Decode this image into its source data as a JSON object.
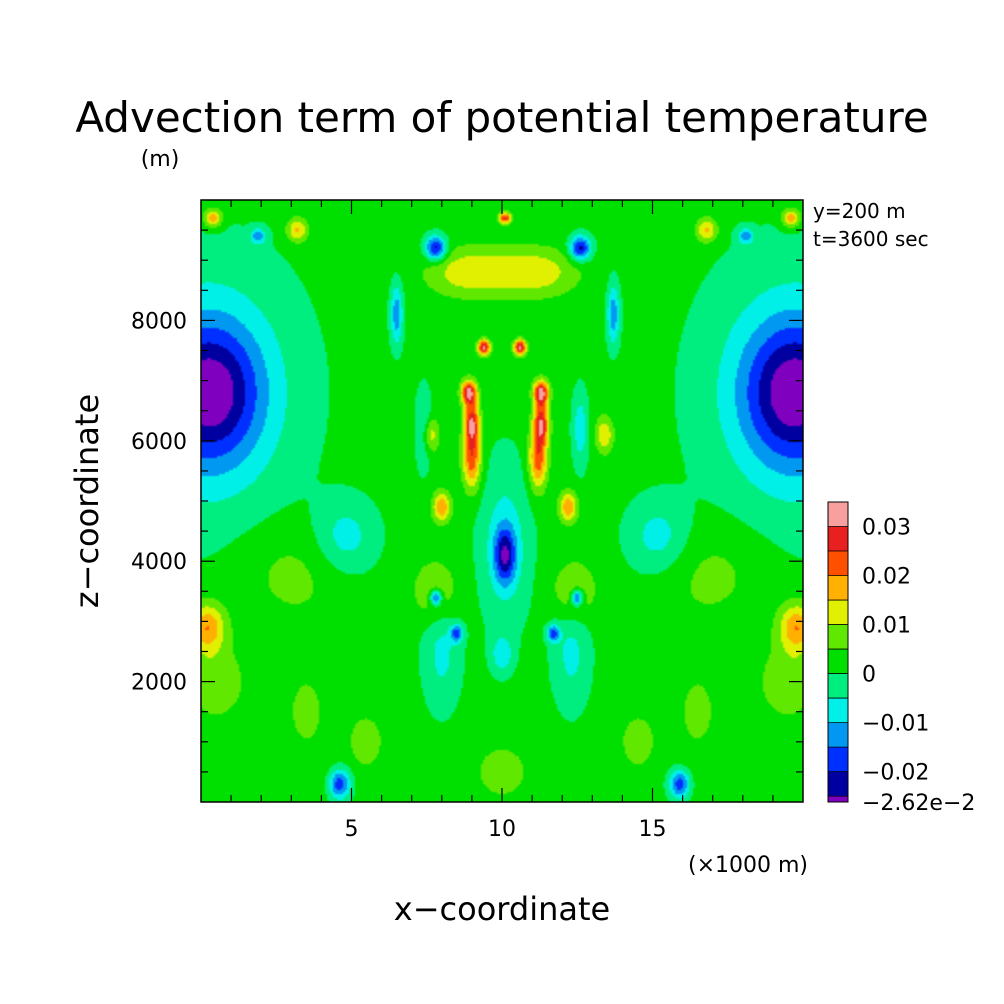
{
  "chart_data": {
    "type": "heatmap",
    "title": "Advection term of potential temperature",
    "units_note": "(m)",
    "annotation_lines": [
      "y=200 m",
      "t=3600 sec"
    ],
    "xlabel": "x−coordinate",
    "xunit": "(×1000 m)",
    "ylabel": "z−coordinate",
    "xlim": [
      0,
      20
    ],
    "ylim": [
      0,
      10000
    ],
    "x_ticks": [
      5,
      10,
      15
    ],
    "x_tick_labels": [
      "5",
      "10",
      "15"
    ],
    "y_ticks": [
      2000,
      4000,
      6000,
      8000
    ],
    "y_tick_labels": [
      "2000",
      "4000",
      "6000",
      "8000"
    ],
    "grid": false,
    "colorbar": {
      "min": -0.0262,
      "levels": [
        -0.025,
        -0.02,
        -0.015,
        -0.01,
        -0.005,
        0,
        0.005,
        0.01,
        0.015,
        0.02,
        0.025,
        0.03,
        0.035
      ],
      "colors": [
        "#7f00bf",
        "#0000a0",
        "#0030ff",
        "#0098f0",
        "#00f0e8",
        "#00ee80",
        "#00e000",
        "#60e800",
        "#e0f000",
        "#ffb000",
        "#ff5000",
        "#e82020",
        "#f8a0a0"
      ],
      "labels": [
        {
          "text": "0.03",
          "value": 0.03
        },
        {
          "text": "0.02",
          "value": 0.02
        },
        {
          "text": "0.01",
          "value": 0.01
        },
        {
          "text": "0",
          "value": 0
        },
        {
          "text": "−0.01",
          "value": -0.01
        },
        {
          "text": "−0.02",
          "value": -0.02
        },
        {
          "text": "−2.62e−2",
          "value": -0.0262
        }
      ]
    },
    "field_features": [
      {
        "x": 0.3,
        "z": 6800,
        "value": -0.02,
        "sx": 1.6,
        "sz": 1100
      },
      {
        "x": 19.7,
        "z": 6800,
        "value": -0.02,
        "sx": 1.6,
        "sz": 1100
      },
      {
        "x": 0.2,
        "z": 6800,
        "value": -0.012,
        "sx": 2.8,
        "sz": 2000
      },
      {
        "x": 19.8,
        "z": 6800,
        "value": -0.012,
        "sx": 2.8,
        "sz": 2000
      },
      {
        "x": 4.8,
        "z": 4400,
        "value": -0.009,
        "sx": 1.0,
        "sz": 600
      },
      {
        "x": 15.2,
        "z": 4400,
        "value": -0.009,
        "sx": 1.0,
        "sz": 600
      },
      {
        "x": 10.1,
        "z": 4100,
        "value": -0.02,
        "sx": 0.35,
        "sz": 450
      },
      {
        "x": 10.1,
        "z": 4300,
        "value": -0.009,
        "sx": 0.8,
        "sz": 1300
      },
      {
        "x": 9.0,
        "z": 5700,
        "value": 0.022,
        "sx": 0.3,
        "sz": 500
      },
      {
        "x": 11.2,
        "z": 5700,
        "value": 0.022,
        "sx": 0.3,
        "sz": 500
      },
      {
        "x": 9.0,
        "z": 6300,
        "value": 0.026,
        "sx": 0.25,
        "sz": 350
      },
      {
        "x": 11.3,
        "z": 6300,
        "value": 0.026,
        "sx": 0.25,
        "sz": 350
      },
      {
        "x": 8.9,
        "z": 6800,
        "value": 0.03,
        "sx": 0.25,
        "sz": 200
      },
      {
        "x": 11.3,
        "z": 6800,
        "value": 0.03,
        "sx": 0.25,
        "sz": 200
      },
      {
        "x": 9.4,
        "z": 7550,
        "value": 0.03,
        "sx": 0.2,
        "sz": 130
      },
      {
        "x": 10.6,
        "z": 7550,
        "value": 0.03,
        "sx": 0.2,
        "sz": 130
      },
      {
        "x": 8.0,
        "z": 4900,
        "value": 0.018,
        "sx": 0.3,
        "sz": 250
      },
      {
        "x": 12.2,
        "z": 4900,
        "value": 0.018,
        "sx": 0.3,
        "sz": 250
      },
      {
        "x": 7.6,
        "z": 6100,
        "value": 0.013,
        "sx": 0.3,
        "sz": 300
      },
      {
        "x": 13.4,
        "z": 6100,
        "value": 0.013,
        "sx": 0.3,
        "sz": 300
      },
      {
        "x": 7.8,
        "z": 3400,
        "value": -0.022,
        "sx": 0.2,
        "sz": 140
      },
      {
        "x": 12.5,
        "z": 3400,
        "value": -0.022,
        "sx": 0.2,
        "sz": 140
      },
      {
        "x": 8.5,
        "z": 2800,
        "value": -0.018,
        "sx": 0.2,
        "sz": 140
      },
      {
        "x": 11.7,
        "z": 2800,
        "value": -0.018,
        "sx": 0.2,
        "sz": 140
      },
      {
        "x": 7.8,
        "z": 3500,
        "value": 0.01,
        "sx": 0.7,
        "sz": 500
      },
      {
        "x": 12.4,
        "z": 3500,
        "value": 0.01,
        "sx": 0.7,
        "sz": 500
      },
      {
        "x": 7.4,
        "z": 6200,
        "value": -0.01,
        "sx": 0.25,
        "sz": 600
      },
      {
        "x": 12.6,
        "z": 6200,
        "value": -0.01,
        "sx": 0.25,
        "sz": 600
      },
      {
        "x": 7.8,
        "z": 9200,
        "value": -0.024,
        "sx": 0.35,
        "sz": 200
      },
      {
        "x": 12.6,
        "z": 9200,
        "value": -0.024,
        "sx": 0.35,
        "sz": 200
      },
      {
        "x": 8.9,
        "z": 8800,
        "value": 0.012,
        "sx": 1.4,
        "sz": 400
      },
      {
        "x": 11.1,
        "z": 8800,
        "value": 0.012,
        "sx": 1.4,
        "sz": 400
      },
      {
        "x": 10.1,
        "z": 9700,
        "value": 0.025,
        "sx": 0.2,
        "sz": 90
      },
      {
        "x": 0.4,
        "z": 9700,
        "value": 0.018,
        "sx": 0.3,
        "sz": 150
      },
      {
        "x": 19.6,
        "z": 9700,
        "value": 0.018,
        "sx": 0.3,
        "sz": 150
      },
      {
        "x": 3.2,
        "z": 9500,
        "value": 0.015,
        "sx": 0.35,
        "sz": 200
      },
      {
        "x": 16.8,
        "z": 9500,
        "value": 0.015,
        "sx": 0.35,
        "sz": 200
      },
      {
        "x": 1.9,
        "z": 9400,
        "value": -0.014,
        "sx": 0.25,
        "sz": 130
      },
      {
        "x": 18.1,
        "z": 9400,
        "value": -0.014,
        "sx": 0.25,
        "sz": 130
      },
      {
        "x": 6.5,
        "z": 8100,
        "value": -0.015,
        "sx": 0.2,
        "sz": 500
      },
      {
        "x": 13.7,
        "z": 8100,
        "value": -0.015,
        "sx": 0.2,
        "sz": 500
      },
      {
        "x": 0.2,
        "z": 2900,
        "value": 0.018,
        "sx": 0.6,
        "sz": 400
      },
      {
        "x": 19.8,
        "z": 2900,
        "value": 0.018,
        "sx": 0.6,
        "sz": 400
      },
      {
        "x": 0.5,
        "z": 2000,
        "value": 0.008,
        "sx": 0.9,
        "sz": 600
      },
      {
        "x": 19.5,
        "z": 2000,
        "value": 0.008,
        "sx": 0.9,
        "sz": 600
      },
      {
        "x": 4.6,
        "z": 300,
        "value": -0.02,
        "sx": 0.35,
        "sz": 250
      },
      {
        "x": 15.9,
        "z": 300,
        "value": -0.02,
        "sx": 0.35,
        "sz": 250
      },
      {
        "x": 8.0,
        "z": 2500,
        "value": -0.008,
        "sx": 0.6,
        "sz": 900
      },
      {
        "x": 12.3,
        "z": 2500,
        "value": -0.008,
        "sx": 0.6,
        "sz": 900
      },
      {
        "x": 10.0,
        "z": 2450,
        "value": -0.01,
        "sx": 0.35,
        "sz": 300
      },
      {
        "x": 5.5,
        "z": 1000,
        "value": 0.008,
        "sx": 0.5,
        "sz": 400
      },
      {
        "x": 14.5,
        "z": 1000,
        "value": 0.008,
        "sx": 0.5,
        "sz": 400
      },
      {
        "x": 10.0,
        "z": 500,
        "value": 0.008,
        "sx": 0.8,
        "sz": 400
      },
      {
        "x": 3.0,
        "z": 3800,
        "value": 0.005,
        "sx": 1.8,
        "sz": 800
      },
      {
        "x": 17.0,
        "z": 3800,
        "value": 0.005,
        "sx": 1.8,
        "sz": 800
      },
      {
        "x": 3.5,
        "z": 1500,
        "value": 0.004,
        "sx": 1.2,
        "sz": 1200
      },
      {
        "x": 16.5,
        "z": 1500,
        "value": 0.004,
        "sx": 1.2,
        "sz": 1200
      }
    ]
  }
}
